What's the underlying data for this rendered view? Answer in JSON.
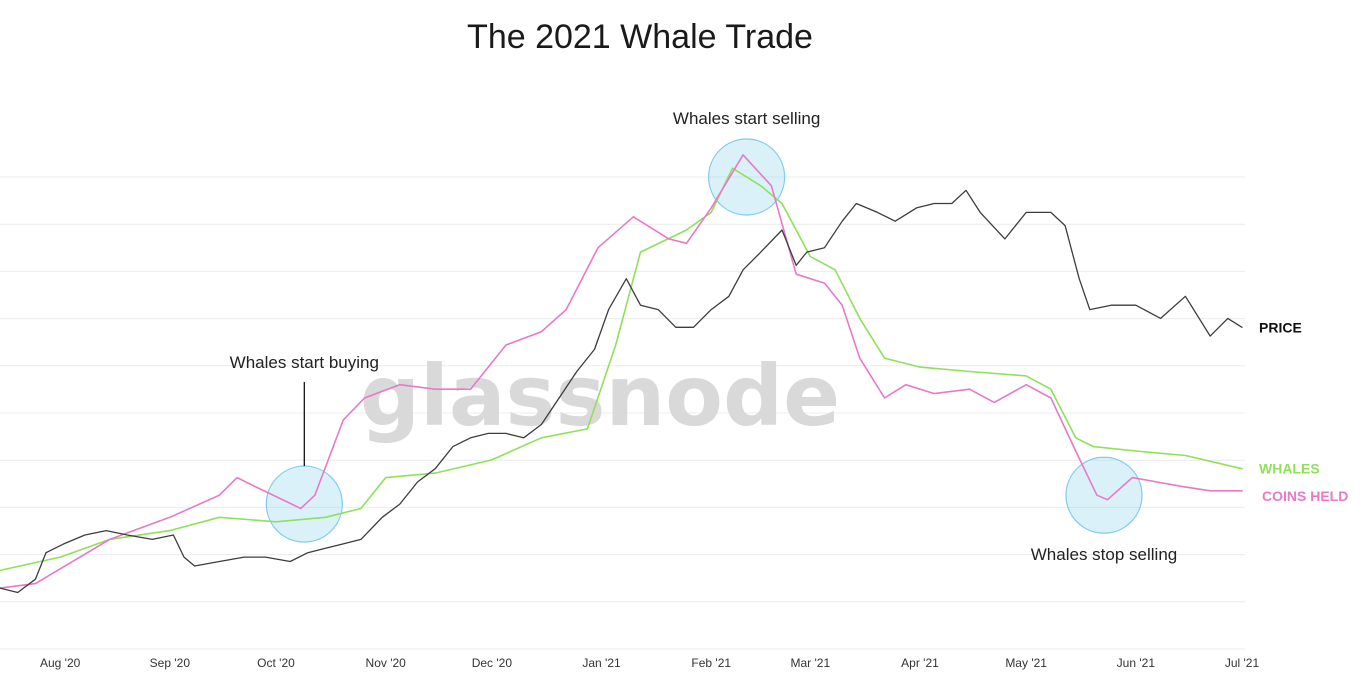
{
  "chart_data": {
    "type": "line",
    "title": "The 2021 Whale Trade",
    "watermark": "glassnode",
    "x_ticks": [
      "Aug '20",
      "Sep '20",
      "Oct '20",
      "Nov '20",
      "Dec '20",
      "Jan '21",
      "Feb '21",
      "Mar '21",
      "Apr '21",
      "May '21",
      "Jun '21",
      "Jul '21"
    ],
    "xlim": [
      "2020-07-15",
      "2021-07-01"
    ],
    "ylim": [
      0,
      100
    ],
    "grid": true,
    "series": [
      {
        "name": "PRICE",
        "color": "#3d3d3d",
        "points": [
          [
            "2020-07-15",
            7
          ],
          [
            "2020-07-20",
            6
          ],
          [
            "2020-07-25",
            9
          ],
          [
            "2020-07-28",
            15
          ],
          [
            "2020-08-02",
            17
          ],
          [
            "2020-08-08",
            19
          ],
          [
            "2020-08-14",
            20
          ],
          [
            "2020-08-20",
            19
          ],
          [
            "2020-08-27",
            18
          ],
          [
            "2020-09-02",
            19
          ],
          [
            "2020-09-05",
            14
          ],
          [
            "2020-09-08",
            12
          ],
          [
            "2020-09-15",
            13
          ],
          [
            "2020-09-22",
            14
          ],
          [
            "2020-09-28",
            14
          ],
          [
            "2020-10-05",
            13
          ],
          [
            "2020-10-10",
            15
          ],
          [
            "2020-10-15",
            16
          ],
          [
            "2020-10-20",
            17
          ],
          [
            "2020-10-25",
            18
          ],
          [
            "2020-10-31",
            23
          ],
          [
            "2020-11-05",
            26
          ],
          [
            "2020-11-10",
            31
          ],
          [
            "2020-11-15",
            34
          ],
          [
            "2020-11-20",
            39
          ],
          [
            "2020-11-25",
            41
          ],
          [
            "2020-11-30",
            42
          ],
          [
            "2020-12-05",
            42
          ],
          [
            "2020-12-10",
            41
          ],
          [
            "2020-12-15",
            44
          ],
          [
            "2020-12-20",
            50
          ],
          [
            "2020-12-25",
            56
          ],
          [
            "2020-12-30",
            61
          ],
          [
            "2021-01-03",
            70
          ],
          [
            "2021-01-08",
            77
          ],
          [
            "2021-01-12",
            71
          ],
          [
            "2021-01-17",
            70
          ],
          [
            "2021-01-22",
            66
          ],
          [
            "2021-01-27",
            66
          ],
          [
            "2021-02-01",
            70
          ],
          [
            "2021-02-06",
            73
          ],
          [
            "2021-02-10",
            79
          ],
          [
            "2021-02-15",
            83
          ],
          [
            "2021-02-21",
            88
          ],
          [
            "2021-02-25",
            80
          ],
          [
            "2021-02-28",
            83
          ],
          [
            "2021-03-05",
            84
          ],
          [
            "2021-03-10",
            90
          ],
          [
            "2021-03-14",
            94
          ],
          [
            "2021-03-20",
            92
          ],
          [
            "2021-03-25",
            90
          ],
          [
            "2021-03-31",
            93
          ],
          [
            "2021-04-05",
            94
          ],
          [
            "2021-04-10",
            94
          ],
          [
            "2021-04-14",
            97
          ],
          [
            "2021-04-18",
            92
          ],
          [
            "2021-04-25",
            86
          ],
          [
            "2021-05-01",
            92
          ],
          [
            "2021-05-08",
            92
          ],
          [
            "2021-05-12",
            89
          ],
          [
            "2021-05-16",
            77
          ],
          [
            "2021-05-19",
            70
          ],
          [
            "2021-05-25",
            71
          ],
          [
            "2021-06-01",
            71
          ],
          [
            "2021-06-08",
            68
          ],
          [
            "2021-06-15",
            73
          ],
          [
            "2021-06-22",
            64
          ],
          [
            "2021-06-27",
            68
          ],
          [
            "2021-07-01",
            66
          ]
        ]
      },
      {
        "name": "WHALES",
        "color": "#8fe05a",
        "points": [
          [
            "2020-07-15",
            11
          ],
          [
            "2020-08-01",
            14
          ],
          [
            "2020-08-15",
            18
          ],
          [
            "2020-09-01",
            20
          ],
          [
            "2020-09-15",
            23
          ],
          [
            "2020-10-01",
            22
          ],
          [
            "2020-10-15",
            23
          ],
          [
            "2020-10-25",
            25
          ],
          [
            "2020-11-01",
            32
          ],
          [
            "2020-11-15",
            33
          ],
          [
            "2020-12-01",
            36
          ],
          [
            "2020-12-15",
            41
          ],
          [
            "2020-12-28",
            43
          ],
          [
            "2021-01-05",
            62
          ],
          [
            "2021-01-12",
            83
          ],
          [
            "2021-01-25",
            88
          ],
          [
            "2021-02-01",
            92
          ],
          [
            "2021-02-07",
            102
          ],
          [
            "2021-02-15",
            98
          ],
          [
            "2021-02-21",
            94
          ],
          [
            "2021-03-01",
            82
          ],
          [
            "2021-03-08",
            79
          ],
          [
            "2021-03-15",
            68
          ],
          [
            "2021-03-22",
            59
          ],
          [
            "2021-04-01",
            57
          ],
          [
            "2021-04-15",
            56
          ],
          [
            "2021-05-01",
            55
          ],
          [
            "2021-05-08",
            52
          ],
          [
            "2021-05-15",
            41
          ],
          [
            "2021-05-20",
            39
          ],
          [
            "2021-06-01",
            38
          ],
          [
            "2021-06-15",
            37
          ],
          [
            "2021-07-01",
            34
          ]
        ]
      },
      {
        "name": "COINS HELD",
        "color": "#e879c7",
        "points": [
          [
            "2020-07-15",
            7
          ],
          [
            "2020-07-25",
            8
          ],
          [
            "2020-08-15",
            18
          ],
          [
            "2020-09-01",
            23
          ],
          [
            "2020-09-15",
            28
          ],
          [
            "2020-09-20",
            32
          ],
          [
            "2020-09-25",
            30
          ],
          [
            "2020-10-08",
            25
          ],
          [
            "2020-10-12",
            28
          ],
          [
            "2020-10-20",
            45
          ],
          [
            "2020-10-26",
            50
          ],
          [
            "2020-11-05",
            53
          ],
          [
            "2020-11-15",
            52
          ],
          [
            "2020-11-25",
            52
          ],
          [
            "2020-12-05",
            62
          ],
          [
            "2020-12-15",
            65
          ],
          [
            "2020-12-22",
            70
          ],
          [
            "2020-12-31",
            84
          ],
          [
            "2021-01-10",
            91
          ],
          [
            "2021-01-20",
            86
          ],
          [
            "2021-01-25",
            85
          ],
          [
            "2021-02-01",
            93
          ],
          [
            "2021-02-10",
            105
          ],
          [
            "2021-02-18",
            98
          ],
          [
            "2021-02-25",
            78
          ],
          [
            "2021-03-05",
            76
          ],
          [
            "2021-03-10",
            71
          ],
          [
            "2021-03-15",
            59
          ],
          [
            "2021-03-22",
            50
          ],
          [
            "2021-03-28",
            53
          ],
          [
            "2021-04-05",
            51
          ],
          [
            "2021-04-15",
            52
          ],
          [
            "2021-04-22",
            49
          ],
          [
            "2021-05-01",
            53
          ],
          [
            "2021-05-08",
            50
          ],
          [
            "2021-05-15",
            38
          ],
          [
            "2021-05-21",
            28
          ],
          [
            "2021-05-24",
            27
          ],
          [
            "2021-05-31",
            32
          ],
          [
            "2021-06-07",
            31
          ],
          [
            "2021-06-14",
            30
          ],
          [
            "2021-06-22",
            29
          ],
          [
            "2021-07-01",
            29
          ]
        ]
      }
    ],
    "annotations": [
      {
        "text": "Whales start buying",
        "x": "2020-10-09",
        "y": 26,
        "leader_line": true
      },
      {
        "text": "Whales start selling",
        "x": "2021-02-11",
        "y": 100,
        "leader_line": false
      },
      {
        "text": "Whales stop selling",
        "x": "2021-05-23",
        "y": 28,
        "leader_line": false
      }
    ],
    "highlight_color": "#7ecbea"
  }
}
